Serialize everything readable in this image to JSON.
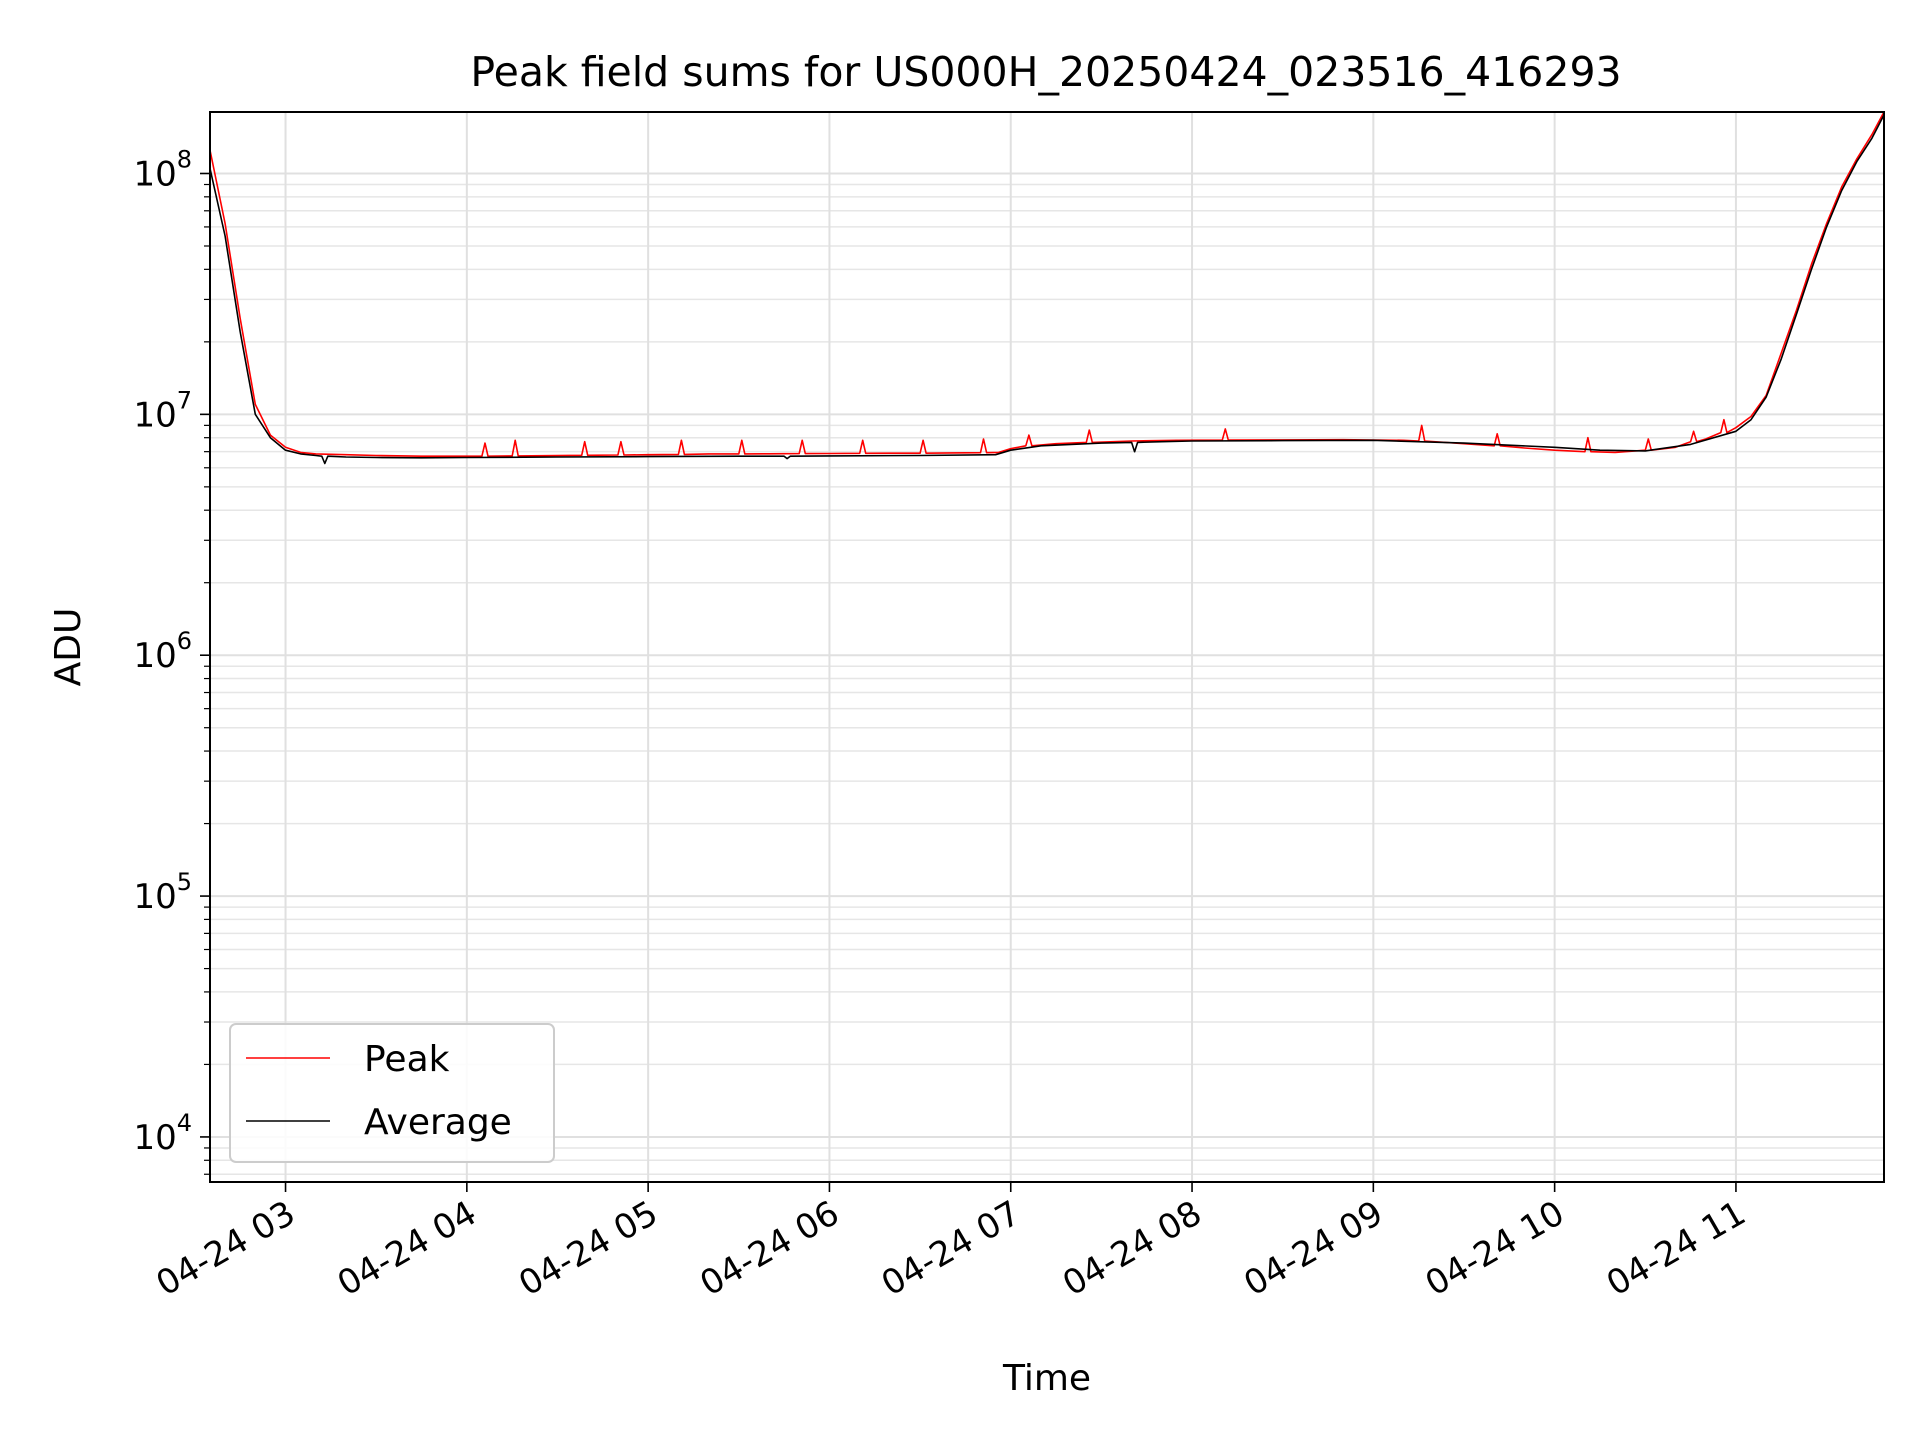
{
  "chart_data": {
    "type": "line",
    "title": "Peak field sums for US000H_20250424_023516_416293",
    "xlabel": "Time",
    "ylabel": "ADU",
    "y_scale": "log",
    "ylim": [
      6500,
      180000000
    ],
    "xlim": [
      "2025-04-24T02:35",
      "2025-04-24T11:49"
    ],
    "y_ticks": [
      {
        "base": "10",
        "exp": "4",
        "value": 10000
      },
      {
        "base": "10",
        "exp": "5",
        "value": 100000
      },
      {
        "base": "10",
        "exp": "6",
        "value": 1000000
      },
      {
        "base": "10",
        "exp": "7",
        "value": 10000000
      },
      {
        "base": "10",
        "exp": "8",
        "value": 100000000
      }
    ],
    "x_ticks": [
      {
        "label": "04-24 03",
        "value": "2025-04-24T03:00"
      },
      {
        "label": "04-24 04",
        "value": "2025-04-24T04:00"
      },
      {
        "label": "04-24 05",
        "value": "2025-04-24T05:00"
      },
      {
        "label": "04-24 06",
        "value": "2025-04-24T06:00"
      },
      {
        "label": "04-24 07",
        "value": "2025-04-24T07:00"
      },
      {
        "label": "04-24 08",
        "value": "2025-04-24T08:00"
      },
      {
        "label": "04-24 09",
        "value": "2025-04-24T09:00"
      },
      {
        "label": "04-24 10",
        "value": "2025-04-24T10:00"
      },
      {
        "label": "04-24 11",
        "value": "2025-04-24T11:00"
      }
    ],
    "grid": true,
    "legend_position": "lower-left",
    "series": [
      {
        "name": "Peak",
        "color": "#ff0000",
        "x": [
          "2025-04-24T02:35",
          "2025-04-24T02:40",
          "2025-04-24T02:45",
          "2025-04-24T02:50",
          "2025-04-24T02:55",
          "2025-04-24T03:00",
          "2025-04-24T03:05",
          "2025-04-24T03:10",
          "2025-04-24T03:20",
          "2025-04-24T03:30",
          "2025-04-24T03:45",
          "2025-04-24T04:00",
          "2025-04-24T04:05",
          "2025-04-24T04:06",
          "2025-04-24T04:07",
          "2025-04-24T04:15",
          "2025-04-24T04:16",
          "2025-04-24T04:17",
          "2025-04-24T04:30",
          "2025-04-24T04:38",
          "2025-04-24T04:39",
          "2025-04-24T04:40",
          "2025-04-24T04:50",
          "2025-04-24T04:51",
          "2025-04-24T04:52",
          "2025-04-24T05:00",
          "2025-04-24T05:10",
          "2025-04-24T05:11",
          "2025-04-24T05:12",
          "2025-04-24T05:20",
          "2025-04-24T05:30",
          "2025-04-24T05:31",
          "2025-04-24T05:32",
          "2025-04-24T05:40",
          "2025-04-24T05:50",
          "2025-04-24T05:51",
          "2025-04-24T05:52",
          "2025-04-24T06:00",
          "2025-04-24T06:10",
          "2025-04-24T06:11",
          "2025-04-24T06:12",
          "2025-04-24T06:20",
          "2025-04-24T06:30",
          "2025-04-24T06:31",
          "2025-04-24T06:32",
          "2025-04-24T06:40",
          "2025-04-24T06:50",
          "2025-04-24T06:51",
          "2025-04-24T06:52",
          "2025-04-24T06:56",
          "2025-04-24T07:00",
          "2025-04-24T07:05",
          "2025-04-24T07:06",
          "2025-04-24T07:07",
          "2025-04-24T07:15",
          "2025-04-24T07:25",
          "2025-04-24T07:26",
          "2025-04-24T07:27",
          "2025-04-24T07:40",
          "2025-04-24T07:55",
          "2025-04-24T08:10",
          "2025-04-24T08:11",
          "2025-04-24T08:12",
          "2025-04-24T08:30",
          "2025-04-24T08:50",
          "2025-04-24T09:10",
          "2025-04-24T09:15",
          "2025-04-24T09:16",
          "2025-04-24T09:17",
          "2025-04-24T09:30",
          "2025-04-24T09:40",
          "2025-04-24T09:41",
          "2025-04-24T09:42",
          "2025-04-24T09:50",
          "2025-04-24T10:00",
          "2025-04-24T10:10",
          "2025-04-24T10:11",
          "2025-04-24T10:12",
          "2025-04-24T10:20",
          "2025-04-24T10:30",
          "2025-04-24T10:31",
          "2025-04-24T10:32",
          "2025-04-24T10:40",
          "2025-04-24T10:45",
          "2025-04-24T10:46",
          "2025-04-24T10:47",
          "2025-04-24T10:50",
          "2025-04-24T10:55",
          "2025-04-24T10:56",
          "2025-04-24T10:57",
          "2025-04-24T11:00",
          "2025-04-24T11:05",
          "2025-04-24T11:10",
          "2025-04-24T11:15",
          "2025-04-24T11:20",
          "2025-04-24T11:25",
          "2025-04-24T11:30",
          "2025-04-24T11:35",
          "2025-04-24T11:40",
          "2025-04-24T11:45",
          "2025-04-24T11:49"
        ],
        "values": [
          125000000,
          62000000,
          25000000,
          11000000,
          8200000,
          7300000,
          6950000,
          6850000,
          6800000,
          6750000,
          6700000,
          6700000,
          6700000,
          7600000,
          6700000,
          6720000,
          7800000,
          6720000,
          6740000,
          6760000,
          7700000,
          6760000,
          6780000,
          7700000,
          6780000,
          6800000,
          6820000,
          7800000,
          6820000,
          6850000,
          6850000,
          7800000,
          6850000,
          6860000,
          6870000,
          7800000,
          6870000,
          6880000,
          6890000,
          7800000,
          6890000,
          6900000,
          6900000,
          7800000,
          6900000,
          6920000,
          6930000,
          7900000,
          6930000,
          6950000,
          7200000,
          7400000,
          8200000,
          7400000,
          7550000,
          7650000,
          8600000,
          7650000,
          7750000,
          7800000,
          7820000,
          8700000,
          7820000,
          7830000,
          7850000,
          7800000,
          7750000,
          9000000,
          7750000,
          7550000,
          7400000,
          8300000,
          7400000,
          7250000,
          7100000,
          7000000,
          8000000,
          7000000,
          6950000,
          7100000,
          7900000,
          7100000,
          7300000,
          7700000,
          8500000,
          7700000,
          7900000,
          8400000,
          9500000,
          8400000,
          8800000,
          9800000,
          12000000,
          18000000,
          27000000,
          42000000,
          62000000,
          88000000,
          115000000,
          145000000,
          180000000
        ]
      },
      {
        "name": "Average",
        "color": "#000000",
        "x": [
          "2025-04-24T02:35",
          "2025-04-24T02:40",
          "2025-04-24T02:45",
          "2025-04-24T02:50",
          "2025-04-24T02:55",
          "2025-04-24T03:00",
          "2025-04-24T03:05",
          "2025-04-24T03:10",
          "2025-04-24T03:12",
          "2025-04-24T03:13",
          "2025-04-24T03:14",
          "2025-04-24T03:20",
          "2025-04-24T03:30",
          "2025-04-24T03:45",
          "2025-04-24T04:00",
          "2025-04-24T04:30",
          "2025-04-24T05:00",
          "2025-04-24T05:30",
          "2025-04-24T05:45",
          "2025-04-24T05:46",
          "2025-04-24T05:47",
          "2025-04-24T06:00",
          "2025-04-24T06:30",
          "2025-04-24T06:55",
          "2025-04-24T07:00",
          "2025-04-24T07:10",
          "2025-04-24T07:20",
          "2025-04-24T07:30",
          "2025-04-24T07:40",
          "2025-04-24T07:41",
          "2025-04-24T07:42",
          "2025-04-24T07:50",
          "2025-04-24T08:00",
          "2025-04-24T08:30",
          "2025-04-24T09:00",
          "2025-04-24T09:30",
          "2025-04-24T10:00",
          "2025-04-24T10:15",
          "2025-04-24T10:30",
          "2025-04-24T10:45",
          "2025-04-24T11:00",
          "2025-04-24T11:05",
          "2025-04-24T11:10",
          "2025-04-24T11:15",
          "2025-04-24T11:20",
          "2025-04-24T11:25",
          "2025-04-24T11:30",
          "2025-04-24T11:35",
          "2025-04-24T11:40",
          "2025-04-24T11:45",
          "2025-04-24T11:49"
        ],
        "values": [
          105000000,
          55000000,
          22000000,
          10000000,
          8000000,
          7100000,
          6850000,
          6750000,
          6700000,
          6250000,
          6700000,
          6650000,
          6620000,
          6600000,
          6620000,
          6650000,
          6680000,
          6700000,
          6700000,
          6550000,
          6700000,
          6720000,
          6750000,
          6800000,
          7100000,
          7400000,
          7500000,
          7600000,
          7650000,
          7000000,
          7650000,
          7700000,
          7750000,
          7780000,
          7800000,
          7600000,
          7300000,
          7100000,
          7050000,
          7500000,
          8500000,
          9500000,
          11800000,
          17000000,
          26000000,
          40000000,
          60000000,
          85000000,
          112000000,
          140000000,
          175000000
        ]
      }
    ]
  }
}
